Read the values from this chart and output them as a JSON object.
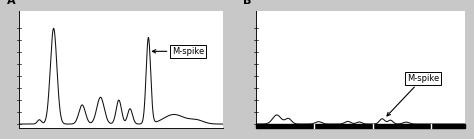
{
  "fig_width": 4.74,
  "fig_height": 1.39,
  "dpi": 100,
  "bg_color": "#c8c8c8",
  "panel_bg": "#ffffff",
  "label_A": "A",
  "label_B": "B",
  "mspike_label": "M-spike",
  "line_color": "#111111",
  "line_width": 0.75,
  "axis_color": "#555555"
}
